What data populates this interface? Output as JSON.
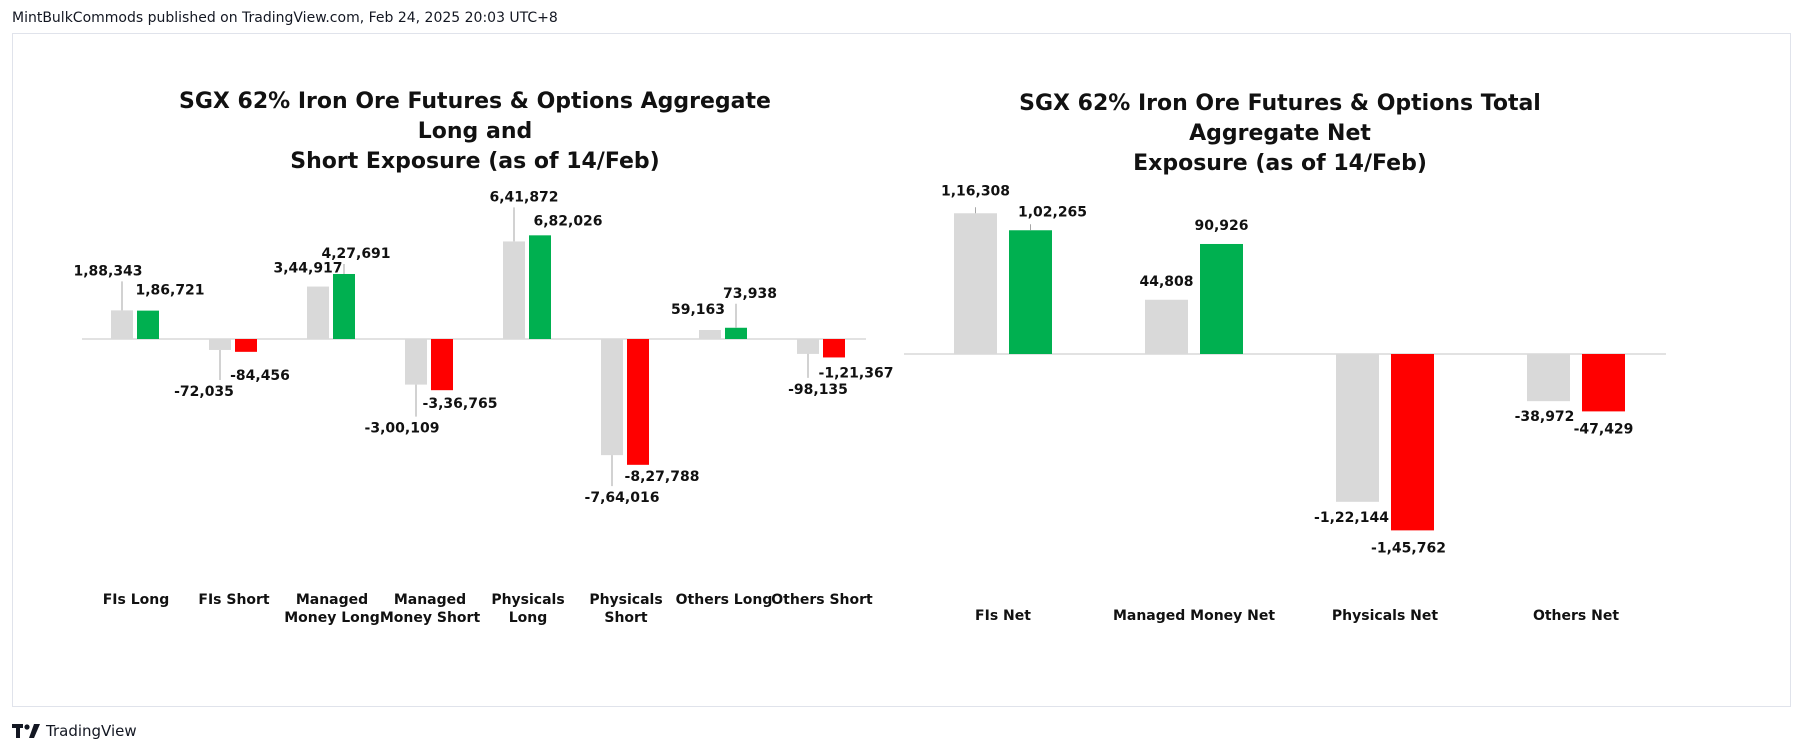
{
  "header": {
    "published_by": "MintBulkCommods published on TradingView.com, Feb 24, 2025 20:03 UTC+8"
  },
  "footer": {
    "brand": "TradingView"
  },
  "colors": {
    "prior": "#d9d9d9",
    "long": "#00b050",
    "short": "#ff0000"
  },
  "chart_data": [
    {
      "type": "bar",
      "title_line1": "SGX 62% Iron Ore Futures & Options Aggregate Long and",
      "title_line2": "Short Exposure (as of 14/Feb)",
      "categories": [
        [
          "FIs Long"
        ],
        [
          "FIs Short"
        ],
        [
          "Managed",
          "Money Long"
        ],
        [
          "Managed",
          "Money Short"
        ],
        [
          "Physicals",
          "Long"
        ],
        [
          "Physicals",
          "Short"
        ],
        [
          "Others Long"
        ],
        [
          "Others Short"
        ]
      ],
      "series": [
        {
          "values": [
            188343,
            -72035,
            344917,
            -300109,
            641872,
            -764016,
            59163,
            -98135
          ],
          "labels": [
            "1,88,343",
            "-72,035",
            "3,44,917",
            "-3,00,109",
            "6,41,872",
            "-7,64,016",
            "59,163",
            "-98,135"
          ]
        },
        {
          "values": [
            186721,
            -84456,
            427691,
            -336765,
            682026,
            -827788,
            73938,
            -121367
          ],
          "labels": [
            "1,86,721",
            "-84,456",
            "4,27,691",
            "-3,36,765",
            "6,82,026",
            "-8,27,788",
            "73,938",
            "-1,21,367"
          ]
        }
      ]
    },
    {
      "type": "bar",
      "title_line1": "SGX 62% Iron Ore Futures & Options Total Aggregate Net",
      "title_line2": "Exposure (as of 14/Feb)",
      "categories": [
        [
          "FIs Net"
        ],
        [
          "Managed Money Net"
        ],
        [
          "Physicals Net"
        ],
        [
          "Others Net"
        ]
      ],
      "series": [
        {
          "values": [
            116308,
            44808,
            -122144,
            -38972
          ],
          "labels": [
            "1,16,308",
            "44,808",
            "-1,22,144",
            "-38,972"
          ]
        },
        {
          "values": [
            102265,
            90926,
            -145762,
            -47429
          ],
          "labels": [
            "1,02,265",
            "90,926",
            "-1,45,762",
            "-47,429"
          ]
        }
      ]
    }
  ]
}
